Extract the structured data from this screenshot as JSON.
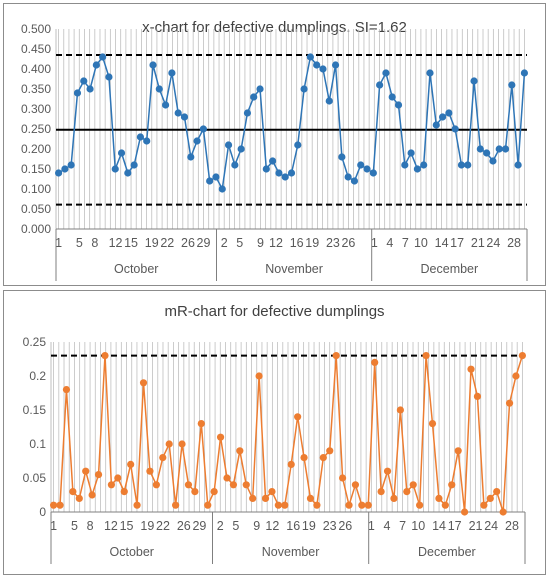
{
  "chart_data": [
    {
      "type": "line",
      "title": "x-chart for defective dumplings. SI=1.62",
      "xlabel": "",
      "ylabel": "",
      "ylim": [
        0,
        0.5
      ],
      "y_ticks": [
        "0.000",
        "0.050",
        "0.100",
        "0.150",
        "0.200",
        "0.250",
        "0.300",
        "0.350",
        "0.400",
        "0.450",
        "0.500"
      ],
      "x_tick_labels": [
        {
          "day": 1,
          "label": "1"
        },
        {
          "day": 5,
          "label": "5"
        },
        {
          "day": 8,
          "label": "8"
        },
        {
          "day": 12,
          "label": "12"
        },
        {
          "day": 15,
          "label": "15"
        },
        {
          "day": 19,
          "label": "19"
        },
        {
          "day": 22,
          "label": "22"
        },
        {
          "day": 26,
          "label": "26"
        },
        {
          "day": 29,
          "label": "29"
        },
        {
          "day": 33,
          "label": "2"
        },
        {
          "day": 36,
          "label": "5"
        },
        {
          "day": 40,
          "label": "9"
        },
        {
          "day": 43,
          "label": "12"
        },
        {
          "day": 47,
          "label": "16"
        },
        {
          "day": 50,
          "label": "19"
        },
        {
          "day": 54,
          "label": "23"
        },
        {
          "day": 57,
          "label": "26"
        },
        {
          "day": 62,
          "label": "1"
        },
        {
          "day": 65,
          "label": "4"
        },
        {
          "day": 68,
          "label": "7"
        },
        {
          "day": 71,
          "label": "10"
        },
        {
          "day": 75,
          "label": "14"
        },
        {
          "day": 78,
          "label": "17"
        },
        {
          "day": 82,
          "label": "21"
        },
        {
          "day": 85,
          "label": "24"
        },
        {
          "day": 89,
          "label": "28"
        }
      ],
      "months": [
        {
          "label": "October",
          "from": 1,
          "to": 31
        },
        {
          "label": "November",
          "from": 32,
          "to": 61
        },
        {
          "label": "December",
          "from": 62,
          "to": 91
        }
      ],
      "reference_lines": {
        "ucl": 0.435,
        "center": 0.248,
        "lcl": 0.061
      },
      "color": "#2e75b6",
      "series": [
        {
          "values": [
            0.14,
            0.15,
            0.16,
            0.34,
            0.37,
            0.35,
            0.41,
            0.43,
            0.38,
            0.15,
            0.19,
            0.14,
            0.16,
            0.23,
            0.22,
            0.41,
            0.35,
            0.31,
            0.39,
            0.29,
            0.28,
            0.18,
            0.22,
            0.25,
            0.12,
            0.13,
            0.1,
            0.21,
            0.16,
            0.2,
            0.29,
            0.33,
            0.35,
            0.15,
            0.17,
            0.14,
            0.13,
            0.14,
            0.21,
            0.35,
            0.43,
            0.41,
            0.4,
            0.32,
            0.41,
            0.18,
            0.13,
            0.12,
            0.16,
            0.15,
            0.14,
            0.36,
            0.39,
            0.33,
            0.31,
            0.16,
            0.19,
            0.15,
            0.16,
            0.39,
            0.26,
            0.28,
            0.29,
            0.25,
            0.16,
            0.16,
            0.37,
            0.2,
            0.19,
            0.17,
            0.2,
            0.2,
            0.36,
            0.16,
            0.39
          ]
        }
      ]
    },
    {
      "type": "line",
      "title": "mR-chart for defective dumplings",
      "xlabel": "",
      "ylabel": "",
      "ylim": [
        0,
        0.25
      ],
      "y_ticks": [
        "0",
        "0.05",
        "0.1",
        "0.15",
        "0.2",
        "0.25"
      ],
      "x_tick_labels": [
        {
          "day": 1,
          "label": "1"
        },
        {
          "day": 5,
          "label": "5"
        },
        {
          "day": 8,
          "label": "8"
        },
        {
          "day": 12,
          "label": "12"
        },
        {
          "day": 15,
          "label": "15"
        },
        {
          "day": 19,
          "label": "19"
        },
        {
          "day": 22,
          "label": "22"
        },
        {
          "day": 26,
          "label": "26"
        },
        {
          "day": 29,
          "label": "29"
        },
        {
          "day": 33,
          "label": "2"
        },
        {
          "day": 36,
          "label": "5"
        },
        {
          "day": 40,
          "label": "9"
        },
        {
          "day": 43,
          "label": "12"
        },
        {
          "day": 47,
          "label": "16"
        },
        {
          "day": 50,
          "label": "19"
        },
        {
          "day": 54,
          "label": "23"
        },
        {
          "day": 57,
          "label": "26"
        },
        {
          "day": 62,
          "label": "1"
        },
        {
          "day": 65,
          "label": "4"
        },
        {
          "day": 68,
          "label": "7"
        },
        {
          "day": 71,
          "label": "10"
        },
        {
          "day": 75,
          "label": "14"
        },
        {
          "day": 78,
          "label": "17"
        },
        {
          "day": 82,
          "label": "21"
        },
        {
          "day": 85,
          "label": "24"
        },
        {
          "day": 89,
          "label": "28"
        }
      ],
      "months": [
        {
          "label": "October",
          "from": 1,
          "to": 31
        },
        {
          "label": "November",
          "from": 32,
          "to": 61
        },
        {
          "label": "December",
          "from": 62,
          "to": 91
        }
      ],
      "reference_lines": {
        "ucl": 0.23
      },
      "color": "#ed7d31",
      "series": [
        {
          "values": [
            0.01,
            0.01,
            0.18,
            0.03,
            0.02,
            0.06,
            0.025,
            0.055,
            0.23,
            0.04,
            0.05,
            0.03,
            0.07,
            0.01,
            0.19,
            0.06,
            0.04,
            0.08,
            0.1,
            0.01,
            0.1,
            0.04,
            0.03,
            0.13,
            0.01,
            0.03,
            0.11,
            0.05,
            0.04,
            0.09,
            0.04,
            0.02,
            0.2,
            0.02,
            0.03,
            0.01,
            0.01,
            0.07,
            0.14,
            0.08,
            0.02,
            0.01,
            0.08,
            0.09,
            0.23,
            0.05,
            0.01,
            0.04,
            0.01,
            0.01,
            0.22,
            0.03,
            0.06,
            0.02,
            0.15,
            0.03,
            0.04,
            0.01,
            0.23,
            0.13,
            0.02,
            0.01,
            0.04,
            0.09,
            0.0,
            0.21,
            0.17,
            0.01,
            0.02,
            0.03,
            0.0,
            0.16,
            0.2,
            0.23
          ]
        }
      ]
    }
  ]
}
